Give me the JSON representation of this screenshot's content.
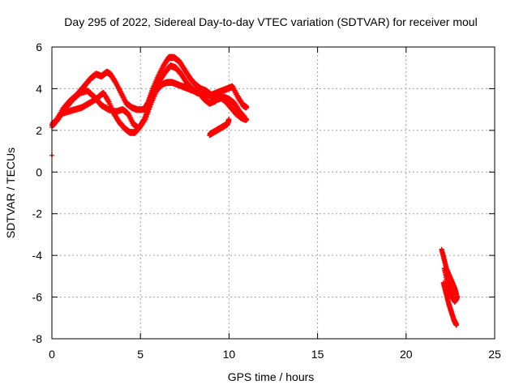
{
  "chart_data": {
    "type": "scatter",
    "title": "Day 295 of 2022, Sidereal Day-to-day VTEC variation (SDTVAR) for receiver moul",
    "xlabel": "GPS time / hours",
    "ylabel": "SDTVAR / TECUs",
    "xlim": [
      0,
      25
    ],
    "ylim": [
      -8,
      6
    ],
    "xticks": [
      "0",
      "5",
      "10",
      "15",
      "20",
      "25"
    ],
    "yticks": [
      "-8",
      "-6",
      "-4",
      "-2",
      "0",
      "2",
      "4",
      "6"
    ],
    "grid": true,
    "marker": "plus",
    "color": "#ff0000",
    "series": [
      {
        "traces": [
          [
            [
              0.0,
              2.3
            ],
            [
              0.3,
              2.5
            ],
            [
              0.6,
              3.0
            ],
            [
              1.0,
              3.4
            ],
            [
              1.4,
              3.7
            ],
            [
              1.8,
              4.1
            ],
            [
              2.2,
              4.5
            ],
            [
              2.5,
              4.7
            ],
            [
              2.8,
              4.6
            ],
            [
              3.1,
              4.8
            ],
            [
              3.3,
              4.7
            ],
            [
              3.6,
              4.3
            ],
            [
              3.9,
              3.8
            ],
            [
              4.2,
              3.3
            ],
            [
              4.5,
              3.1
            ],
            [
              4.8,
              3.0
            ],
            [
              5.2,
              3.0
            ],
            [
              5.4,
              3.3
            ],
            [
              5.7,
              4.0
            ],
            [
              6.0,
              4.6
            ],
            [
              6.3,
              5.1
            ],
            [
              6.6,
              5.5
            ],
            [
              6.9,
              5.5
            ],
            [
              7.2,
              5.3
            ],
            [
              7.5,
              4.9
            ],
            [
              7.8,
              4.5
            ],
            [
              8.1,
              4.2
            ],
            [
              8.4,
              4.0
            ],
            [
              8.7,
              3.9
            ],
            [
              9.0,
              3.7
            ],
            [
              9.3,
              3.8
            ],
            [
              9.6,
              3.9
            ],
            [
              9.9,
              4.0
            ],
            [
              10.2,
              4.1
            ],
            [
              10.5,
              3.6
            ],
            [
              10.8,
              3.2
            ],
            [
              11.0,
              3.1
            ]
          ],
          [
            [
              0.0,
              2.2
            ],
            [
              0.4,
              2.6
            ],
            [
              0.8,
              3.1
            ],
            [
              1.2,
              3.5
            ],
            [
              1.6,
              3.8
            ],
            [
              2.0,
              3.9
            ],
            [
              2.4,
              3.6
            ],
            [
              2.8,
              3.2
            ],
            [
              3.2,
              3.0
            ],
            [
              3.6,
              2.9
            ],
            [
              4.0,
              3.0
            ],
            [
              4.3,
              2.8
            ],
            [
              4.6,
              2.3
            ],
            [
              4.9,
              2.1
            ],
            [
              5.2,
              2.5
            ],
            [
              5.5,
              3.2
            ],
            [
              5.8,
              3.9
            ],
            [
              6.1,
              4.4
            ],
            [
              6.4,
              4.8
            ],
            [
              6.7,
              5.1
            ],
            [
              7.0,
              5.0
            ],
            [
              7.3,
              4.7
            ],
            [
              7.6,
              4.3
            ],
            [
              7.9,
              4.0
            ],
            [
              8.2,
              3.8
            ],
            [
              8.5,
              3.8
            ],
            [
              8.8,
              3.7
            ],
            [
              9.1,
              3.6
            ],
            [
              9.4,
              3.5
            ],
            [
              9.7,
              3.6
            ],
            [
              10.0,
              3.5
            ],
            [
              10.3,
              3.3
            ],
            [
              10.6,
              2.9
            ],
            [
              10.9,
              2.6
            ]
          ],
          [
            [
              0.1,
              2.3
            ],
            [
              0.5,
              2.8
            ],
            [
              0.9,
              2.9
            ],
            [
              1.3,
              3.0
            ],
            [
              1.7,
              3.1
            ],
            [
              2.1,
              3.3
            ],
            [
              2.5,
              3.5
            ],
            [
              2.9,
              3.8
            ],
            [
              3.2,
              3.4
            ],
            [
              3.5,
              2.8
            ],
            [
              3.8,
              2.4
            ],
            [
              4.1,
              2.1
            ],
            [
              4.4,
              1.9
            ],
            [
              4.7,
              1.9
            ],
            [
              5.0,
              2.2
            ],
            [
              5.3,
              2.6
            ],
            [
              5.6,
              3.3
            ],
            [
              5.9,
              3.9
            ],
            [
              6.2,
              4.2
            ],
            [
              6.5,
              4.3
            ],
            [
              6.8,
              4.3
            ],
            [
              7.1,
              4.2
            ],
            [
              7.4,
              4.1
            ],
            [
              7.7,
              4.0
            ],
            [
              8.0,
              3.9
            ],
            [
              8.3,
              3.8
            ],
            [
              8.6,
              3.5
            ],
            [
              8.9,
              3.3
            ],
            [
              9.2,
              3.4
            ],
            [
              9.5,
              3.6
            ],
            [
              9.8,
              3.4
            ],
            [
              10.1,
              3.1
            ],
            [
              10.4,
              2.8
            ],
            [
              10.7,
              2.6
            ],
            [
              11.0,
              2.5
            ]
          ],
          [
            [
              8.9,
              1.8
            ],
            [
              9.1,
              1.9
            ],
            [
              9.3,
              2.0
            ],
            [
              9.5,
              2.1
            ],
            [
              9.7,
              2.2
            ],
            [
              9.9,
              2.3
            ],
            [
              10.0,
              2.5
            ]
          ],
          [
            [
              22.0,
              -3.7
            ],
            [
              22.15,
              -4.2
            ],
            [
              22.3,
              -4.7
            ],
            [
              22.45,
              -5.0
            ],
            [
              22.6,
              -5.3
            ],
            [
              22.75,
              -5.6
            ],
            [
              22.85,
              -5.9
            ]
          ],
          [
            [
              22.1,
              -5.3
            ],
            [
              22.25,
              -5.8
            ],
            [
              22.4,
              -6.3
            ],
            [
              22.55,
              -6.7
            ],
            [
              22.7,
              -7.1
            ],
            [
              22.85,
              -7.35
            ]
          ],
          [
            [
              22.15,
              -4.6
            ],
            [
              22.3,
              -5.2
            ],
            [
              22.45,
              -5.6
            ],
            [
              22.6,
              -6.0
            ],
            [
              22.75,
              -6.2
            ],
            [
              22.9,
              -6.0
            ]
          ]
        ],
        "points": [
          [
            0.0,
            0.8
          ]
        ]
      }
    ]
  }
}
